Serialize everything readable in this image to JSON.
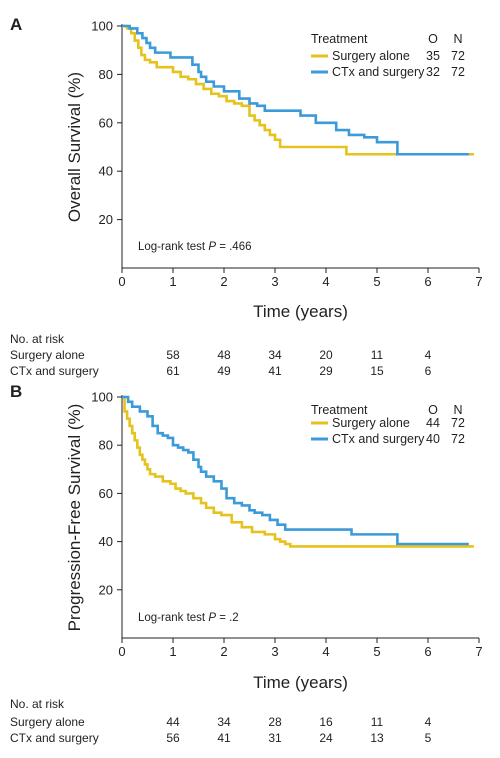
{
  "chart_data": [
    {
      "type": "line",
      "panel": "A",
      "ylabel": "Overall Survival (%)",
      "xlabel": "Time (years)",
      "xlim": [
        0,
        7
      ],
      "ylim": [
        0,
        100
      ],
      "xticks": [
        "0",
        "1",
        "2",
        "3",
        "4",
        "5",
        "6",
        "7"
      ],
      "yticks": [
        "20",
        "40",
        "60",
        "80",
        "100"
      ],
      "grid": false,
      "legend": {
        "placement": "top-right",
        "title": "Treatment",
        "col_o": "O",
        "col_n": "N",
        "entries": [
          {
            "name": "Surgery alone",
            "o": "35",
            "n": "72"
          },
          {
            "name": "CTx and surgery",
            "o": "32",
            "n": "72"
          }
        ]
      },
      "annotation": {
        "prefix": "Log-rank test ",
        "p": "P",
        "suffix": " = .466"
      },
      "series": [
        {
          "name": "Surgery alone",
          "color": "#e6c21c",
          "x": [
            0,
            0.1,
            0.18,
            0.25,
            0.32,
            0.38,
            0.45,
            0.55,
            0.68,
            0.85,
            1.0,
            1.15,
            1.3,
            1.45,
            1.6,
            1.75,
            1.9,
            2.05,
            2.2,
            2.35,
            2.5,
            2.6,
            2.7,
            2.8,
            2.9,
            3.0,
            3.1,
            3.3,
            3.5,
            3.8,
            4.15,
            4.4,
            6.9
          ],
          "y": [
            100,
            99,
            97,
            94,
            91,
            88,
            86,
            85,
            83,
            83,
            81,
            79,
            78,
            76,
            74,
            72,
            71,
            69,
            68,
            67,
            63,
            61,
            59,
            57,
            55,
            53,
            50,
            50,
            50,
            50,
            50,
            47,
            47
          ]
        },
        {
          "name": "CTx and surgery",
          "color": "#3b9ad9",
          "x": [
            0,
            0.15,
            0.3,
            0.4,
            0.48,
            0.55,
            0.65,
            0.8,
            0.95,
            1.2,
            1.38,
            1.5,
            1.55,
            1.65,
            1.8,
            2.0,
            2.3,
            2.5,
            2.65,
            2.8,
            3.2,
            3.5,
            3.8,
            4.2,
            4.45,
            4.75,
            5.0,
            5.4,
            6.8
          ],
          "y": [
            100,
            99,
            97,
            95,
            93,
            91,
            89,
            89,
            87,
            87,
            84,
            81,
            79,
            77,
            75,
            73,
            70,
            68,
            67,
            65,
            65,
            63,
            60,
            57,
            55,
            54,
            52,
            47,
            47
          ]
        }
      ],
      "risk_table": {
        "title": "No. at risk",
        "x": [
          1,
          2,
          3,
          4,
          5,
          6
        ],
        "rows": [
          {
            "label": "Surgery alone",
            "values": [
              "58",
              "48",
              "34",
              "20",
              "11",
              "4"
            ]
          },
          {
            "label": "CTx and surgery",
            "values": [
              "61",
              "49",
              "41",
              "29",
              "15",
              "6"
            ]
          }
        ]
      }
    },
    {
      "type": "line",
      "panel": "B",
      "ylabel": "Progression-Free Survival (%)",
      "xlabel": "Time (years)",
      "xlim": [
        0,
        7
      ],
      "ylim": [
        0,
        100
      ],
      "xticks": [
        "0",
        "1",
        "2",
        "3",
        "4",
        "5",
        "6",
        "7"
      ],
      "yticks": [
        "20",
        "40",
        "60",
        "80",
        "100"
      ],
      "grid": false,
      "legend": {
        "placement": "top-right",
        "title": "Treatment",
        "col_o": "O",
        "col_n": "N",
        "entries": [
          {
            "name": "Surgery alone",
            "o": "44",
            "n": "72"
          },
          {
            "name": "CTx and surgery",
            "o": "40",
            "n": "72"
          }
        ]
      },
      "annotation": {
        "prefix": "Log-rank test ",
        "p": "P",
        "suffix": " = .2"
      },
      "series": [
        {
          "name": "Surgery alone",
          "color": "#e6c21c",
          "x": [
            0,
            0.05,
            0.1,
            0.15,
            0.2,
            0.25,
            0.3,
            0.35,
            0.4,
            0.45,
            0.5,
            0.55,
            0.65,
            0.8,
            0.95,
            1.05,
            1.15,
            1.25,
            1.4,
            1.55,
            1.65,
            1.8,
            1.95,
            2.15,
            2.35,
            2.55,
            2.8,
            3.0,
            3.1,
            3.2,
            3.3,
            6.9
          ],
          "y": [
            100,
            94,
            91,
            88,
            85,
            82,
            79,
            76,
            74,
            72,
            70,
            68,
            67,
            65,
            64,
            62,
            61,
            60,
            58,
            56,
            54,
            52,
            51,
            48,
            46,
            44,
            43,
            41,
            40,
            39,
            38,
            38
          ]
        },
        {
          "name": "CTx and surgery",
          "color": "#3b9ad9",
          "x": [
            0,
            0.12,
            0.2,
            0.35,
            0.5,
            0.6,
            0.7,
            0.8,
            0.9,
            1.0,
            1.1,
            1.2,
            1.3,
            1.4,
            1.5,
            1.55,
            1.65,
            1.8,
            1.95,
            2.05,
            2.2,
            2.35,
            2.5,
            2.6,
            2.75,
            2.9,
            3.05,
            3.2,
            3.5,
            4.5,
            5.0,
            5.4,
            6.8
          ],
          "y": [
            100,
            98,
            96,
            94,
            92,
            88,
            85,
            84,
            83,
            80,
            79,
            78,
            77,
            74,
            71,
            69,
            67,
            65,
            62,
            58,
            56,
            55,
            53,
            52,
            51,
            49,
            47,
            45,
            45,
            43,
            43,
            39,
            39
          ]
        }
      ],
      "risk_table": {
        "title": "No. at risk",
        "x": [
          1,
          2,
          3,
          4,
          5,
          6
        ],
        "rows": [
          {
            "label": "Surgery alone",
            "values": [
              "44",
              "34",
              "28",
              "16",
              "11",
              "4"
            ]
          },
          {
            "label": "CTx and surgery",
            "values": [
              "56",
              "41",
              "31",
              "24",
              "13",
              "5"
            ]
          }
        ]
      }
    }
  ]
}
